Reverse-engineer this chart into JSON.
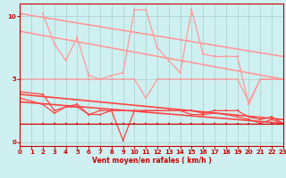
{
  "xlabel": "Vent moyen/en rafales ( km/h )",
  "xlim": [
    0,
    23
  ],
  "ylim": [
    -0.3,
    11
  ],
  "yticks": [
    0,
    5,
    10
  ],
  "xticks": [
    0,
    1,
    2,
    3,
    4,
    5,
    6,
    7,
    8,
    9,
    10,
    11,
    12,
    13,
    14,
    15,
    16,
    17,
    18,
    19,
    20,
    21,
    22,
    23
  ],
  "bg_color": "#cff0f0",
  "grid_color": "#aacccc",
  "lines": [
    {
      "x": [
        2,
        3,
        4,
        5,
        6,
        7,
        8,
        9,
        10,
        11,
        12,
        13,
        14,
        15,
        16,
        17,
        18,
        19,
        20,
        21,
        22,
        23
      ],
      "y": [
        10.2,
        7.8,
        6.5,
        8.3,
        5.3,
        5.0,
        5.3,
        5.5,
        10.5,
        10.5,
        7.5,
        6.5,
        5.5,
        10.5,
        7.0,
        6.8,
        6.8,
        6.8,
        3.0,
        5.0,
        5.0,
        5.0
      ],
      "color": "#ff9999",
      "lw": 0.9,
      "marker": "s",
      "ms": 1.8
    },
    {
      "x": [
        0,
        23
      ],
      "y": [
        10.2,
        6.8
      ],
      "color": "#ff9999",
      "lw": 1.2,
      "marker": null,
      "ms": 0
    },
    {
      "x": [
        0,
        23
      ],
      "y": [
        8.8,
        5.0
      ],
      "color": "#ff9999",
      "lw": 1.2,
      "marker": null,
      "ms": 0
    },
    {
      "x": [
        0,
        2,
        3,
        5,
        6,
        7,
        8,
        9,
        10,
        11,
        12,
        13,
        14,
        15,
        16,
        17,
        18,
        19,
        20,
        21,
        22,
        23
      ],
      "y": [
        5.0,
        5.0,
        5.0,
        5.0,
        5.0,
        5.0,
        5.0,
        5.0,
        5.0,
        3.5,
        5.0,
        5.0,
        5.0,
        5.0,
        5.0,
        5.0,
        5.0,
        5.0,
        3.2,
        5.0,
        5.0,
        5.0
      ],
      "color": "#ff9999",
      "lw": 0.9,
      "marker": "s",
      "ms": 1.8
    },
    {
      "x": [
        0,
        2,
        3,
        4,
        5,
        6,
        7,
        8,
        9,
        10,
        11,
        12,
        13,
        14,
        15,
        16,
        17,
        18,
        19,
        20,
        21,
        22,
        23
      ],
      "y": [
        4.0,
        3.8,
        2.5,
        2.8,
        3.0,
        2.2,
        2.5,
        2.5,
        0.15,
        2.5,
        2.5,
        2.5,
        2.5,
        2.5,
        2.5,
        2.3,
        2.5,
        2.5,
        2.5,
        2.0,
        1.8,
        2.0,
        1.5
      ],
      "color": "#ff4444",
      "lw": 0.9,
      "marker": "s",
      "ms": 1.8
    },
    {
      "x": [
        0,
        2,
        3,
        4,
        5,
        6,
        7,
        8,
        9,
        10,
        11,
        12,
        13,
        14,
        15,
        16,
        17,
        18,
        19,
        20,
        21,
        22,
        23
      ],
      "y": [
        3.5,
        3.0,
        2.3,
        2.8,
        2.8,
        2.2,
        2.2,
        2.5,
        2.5,
        2.5,
        2.5,
        2.5,
        2.5,
        2.5,
        2.2,
        2.2,
        2.3,
        2.2,
        2.0,
        1.8,
        1.5,
        1.8,
        1.5
      ],
      "color": "#ff4444",
      "lw": 0.9,
      "marker": "s",
      "ms": 1.8
    },
    {
      "x": [
        0,
        23
      ],
      "y": [
        3.8,
        1.8
      ],
      "color": "#ff4444",
      "lw": 1.2,
      "marker": null,
      "ms": 0
    },
    {
      "x": [
        0,
        23
      ],
      "y": [
        3.2,
        1.5
      ],
      "color": "#ff4444",
      "lw": 1.2,
      "marker": null,
      "ms": 0
    },
    {
      "x": [
        0,
        2,
        3,
        4,
        5,
        6,
        7,
        8,
        9,
        10,
        11,
        12,
        13,
        14,
        15,
        16,
        17,
        18,
        19,
        20,
        21,
        22,
        23
      ],
      "y": [
        1.5,
        1.5,
        1.5,
        1.5,
        1.5,
        1.5,
        1.5,
        1.5,
        1.5,
        1.5,
        1.5,
        1.5,
        1.5,
        1.5,
        1.5,
        1.5,
        1.5,
        1.5,
        1.5,
        1.5,
        1.5,
        1.5,
        1.5
      ],
      "color": "#cc0000",
      "lw": 0.9,
      "marker": "s",
      "ms": 1.8
    }
  ]
}
